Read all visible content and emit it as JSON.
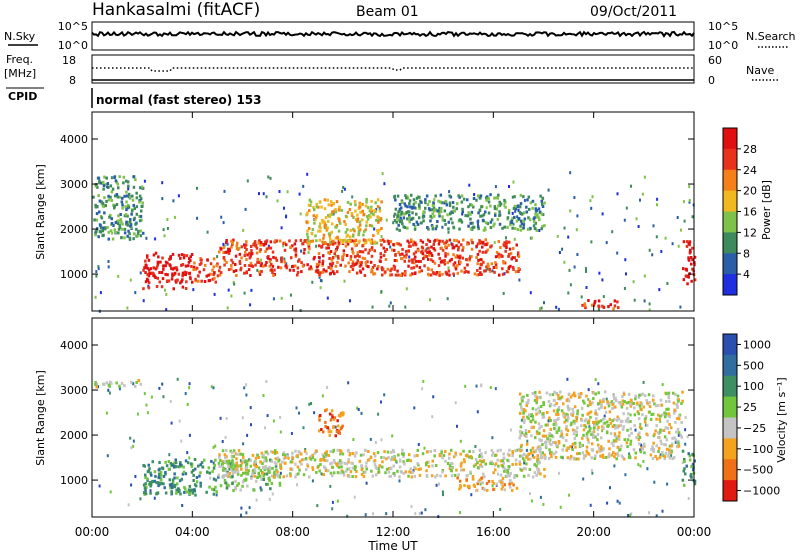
{
  "header": {
    "station": "Hankasalmi (fitACF)",
    "beam": "Beam 01",
    "date": "09/Oct/2011"
  },
  "top_panels": {
    "nsky_label": "N.Sky",
    "nsky_ticks": [
      "10^5",
      "10^0"
    ],
    "nsearch_label": "N.Search",
    "nsearch_ticks": [
      "10^5",
      "10^0"
    ],
    "freq_label_1": "Freq.",
    "freq_label_2": "[MHz]",
    "freq_ticks": [
      "18",
      "8"
    ],
    "nave_label": "Nave",
    "nave_ticks": [
      "60",
      "0"
    ],
    "cpid_label": "CPID",
    "cpid_value": "normal (fast stereo) 153"
  },
  "chart_data": [
    {
      "type": "heatmap",
      "name": "power",
      "ylabel": "Slant Range [km]",
      "y_ticks": [
        "1000",
        "2000",
        "3000",
        "4000"
      ],
      "ylim": [
        180,
        4600
      ],
      "xlim": [
        0,
        24
      ],
      "colorbar_label": "Power [dB]",
      "colorbar_ticks": [
        "4",
        "8",
        "12",
        "16",
        "20",
        "24",
        "28"
      ],
      "colors": [
        "#1f2fe0",
        "#2a5fa8",
        "#3d8a5a",
        "#7fc24a",
        "#f2b81f",
        "#f57f19",
        "#e8321c",
        "#e01010"
      ],
      "features": [
        {
          "t": [
            2.0,
            4.0
          ],
          "r": [
            700,
            1500
          ],
          "level": 7
        },
        {
          "t": [
            4.0,
            5.0
          ],
          "r": [
            850,
            1400
          ],
          "level": 6
        },
        {
          "t": [
            5.0,
            17.0
          ],
          "r": [
            1000,
            1800
          ],
          "level": 6
        },
        {
          "t": [
            0.0,
            2.0
          ],
          "r": [
            1800,
            3200
          ],
          "level": 2
        },
        {
          "t": [
            8.5,
            11.5
          ],
          "r": [
            1700,
            2700
          ],
          "level": 4
        },
        {
          "t": [
            12.0,
            18.0
          ],
          "r": [
            2000,
            2800
          ],
          "level": 2
        },
        {
          "t": [
            23.5,
            24.0
          ],
          "r": [
            800,
            1800
          ],
          "level": 7
        },
        {
          "t": [
            19.5,
            21.0
          ],
          "r": [
            250,
            450
          ],
          "level": 6
        }
      ]
    },
    {
      "type": "heatmap",
      "name": "velocity",
      "ylabel": "Slant Range [km]",
      "y_ticks": [
        "1000",
        "2000",
        "3000",
        "4000"
      ],
      "ylim": [
        180,
        4600
      ],
      "xlim": [
        0,
        24
      ],
      "colorbar_label": "Velocity [m s⁻¹]",
      "colorbar_ticks": [
        "1000",
        "500",
        "100",
        "25",
        "−25",
        "−100",
        "−500",
        "−1000"
      ],
      "colors": [
        "#2a4fb0",
        "#2f6e9e",
        "#3d8f63",
        "#72c63c",
        "#c4c4c4",
        "#f5a21e",
        "#f07018",
        "#e01a10"
      ],
      "features": [
        {
          "t": [
            2.0,
            5.0
          ],
          "r": [
            700,
            1500
          ],
          "level": 2
        },
        {
          "t": [
            5.0,
            7.5
          ],
          "r": [
            800,
            1500
          ],
          "level": 3
        },
        {
          "t": [
            5.0,
            18.0
          ],
          "r": [
            1100,
            1700
          ],
          "level": 4
        },
        {
          "t": [
            17.0,
            23.5
          ],
          "r": [
            1500,
            3000
          ],
          "level": 4
        },
        {
          "t": [
            0.0,
            2.0
          ],
          "r": [
            3100,
            3250
          ],
          "level": 4
        },
        {
          "t": [
            9.0,
            10.0
          ],
          "r": [
            2000,
            2600
          ],
          "level": 6
        },
        {
          "t": [
            14.5,
            17.0
          ],
          "r": [
            800,
            1100
          ],
          "level": 5
        },
        {
          "t": [
            23.5,
            24.0
          ],
          "r": [
            900,
            1700
          ],
          "level": 2
        }
      ]
    }
  ],
  "x_axis": {
    "ticks": [
      "00:00",
      "04:00",
      "08:00",
      "12:00",
      "16:00",
      "20:00",
      "00:00"
    ],
    "label": "Time UT"
  }
}
